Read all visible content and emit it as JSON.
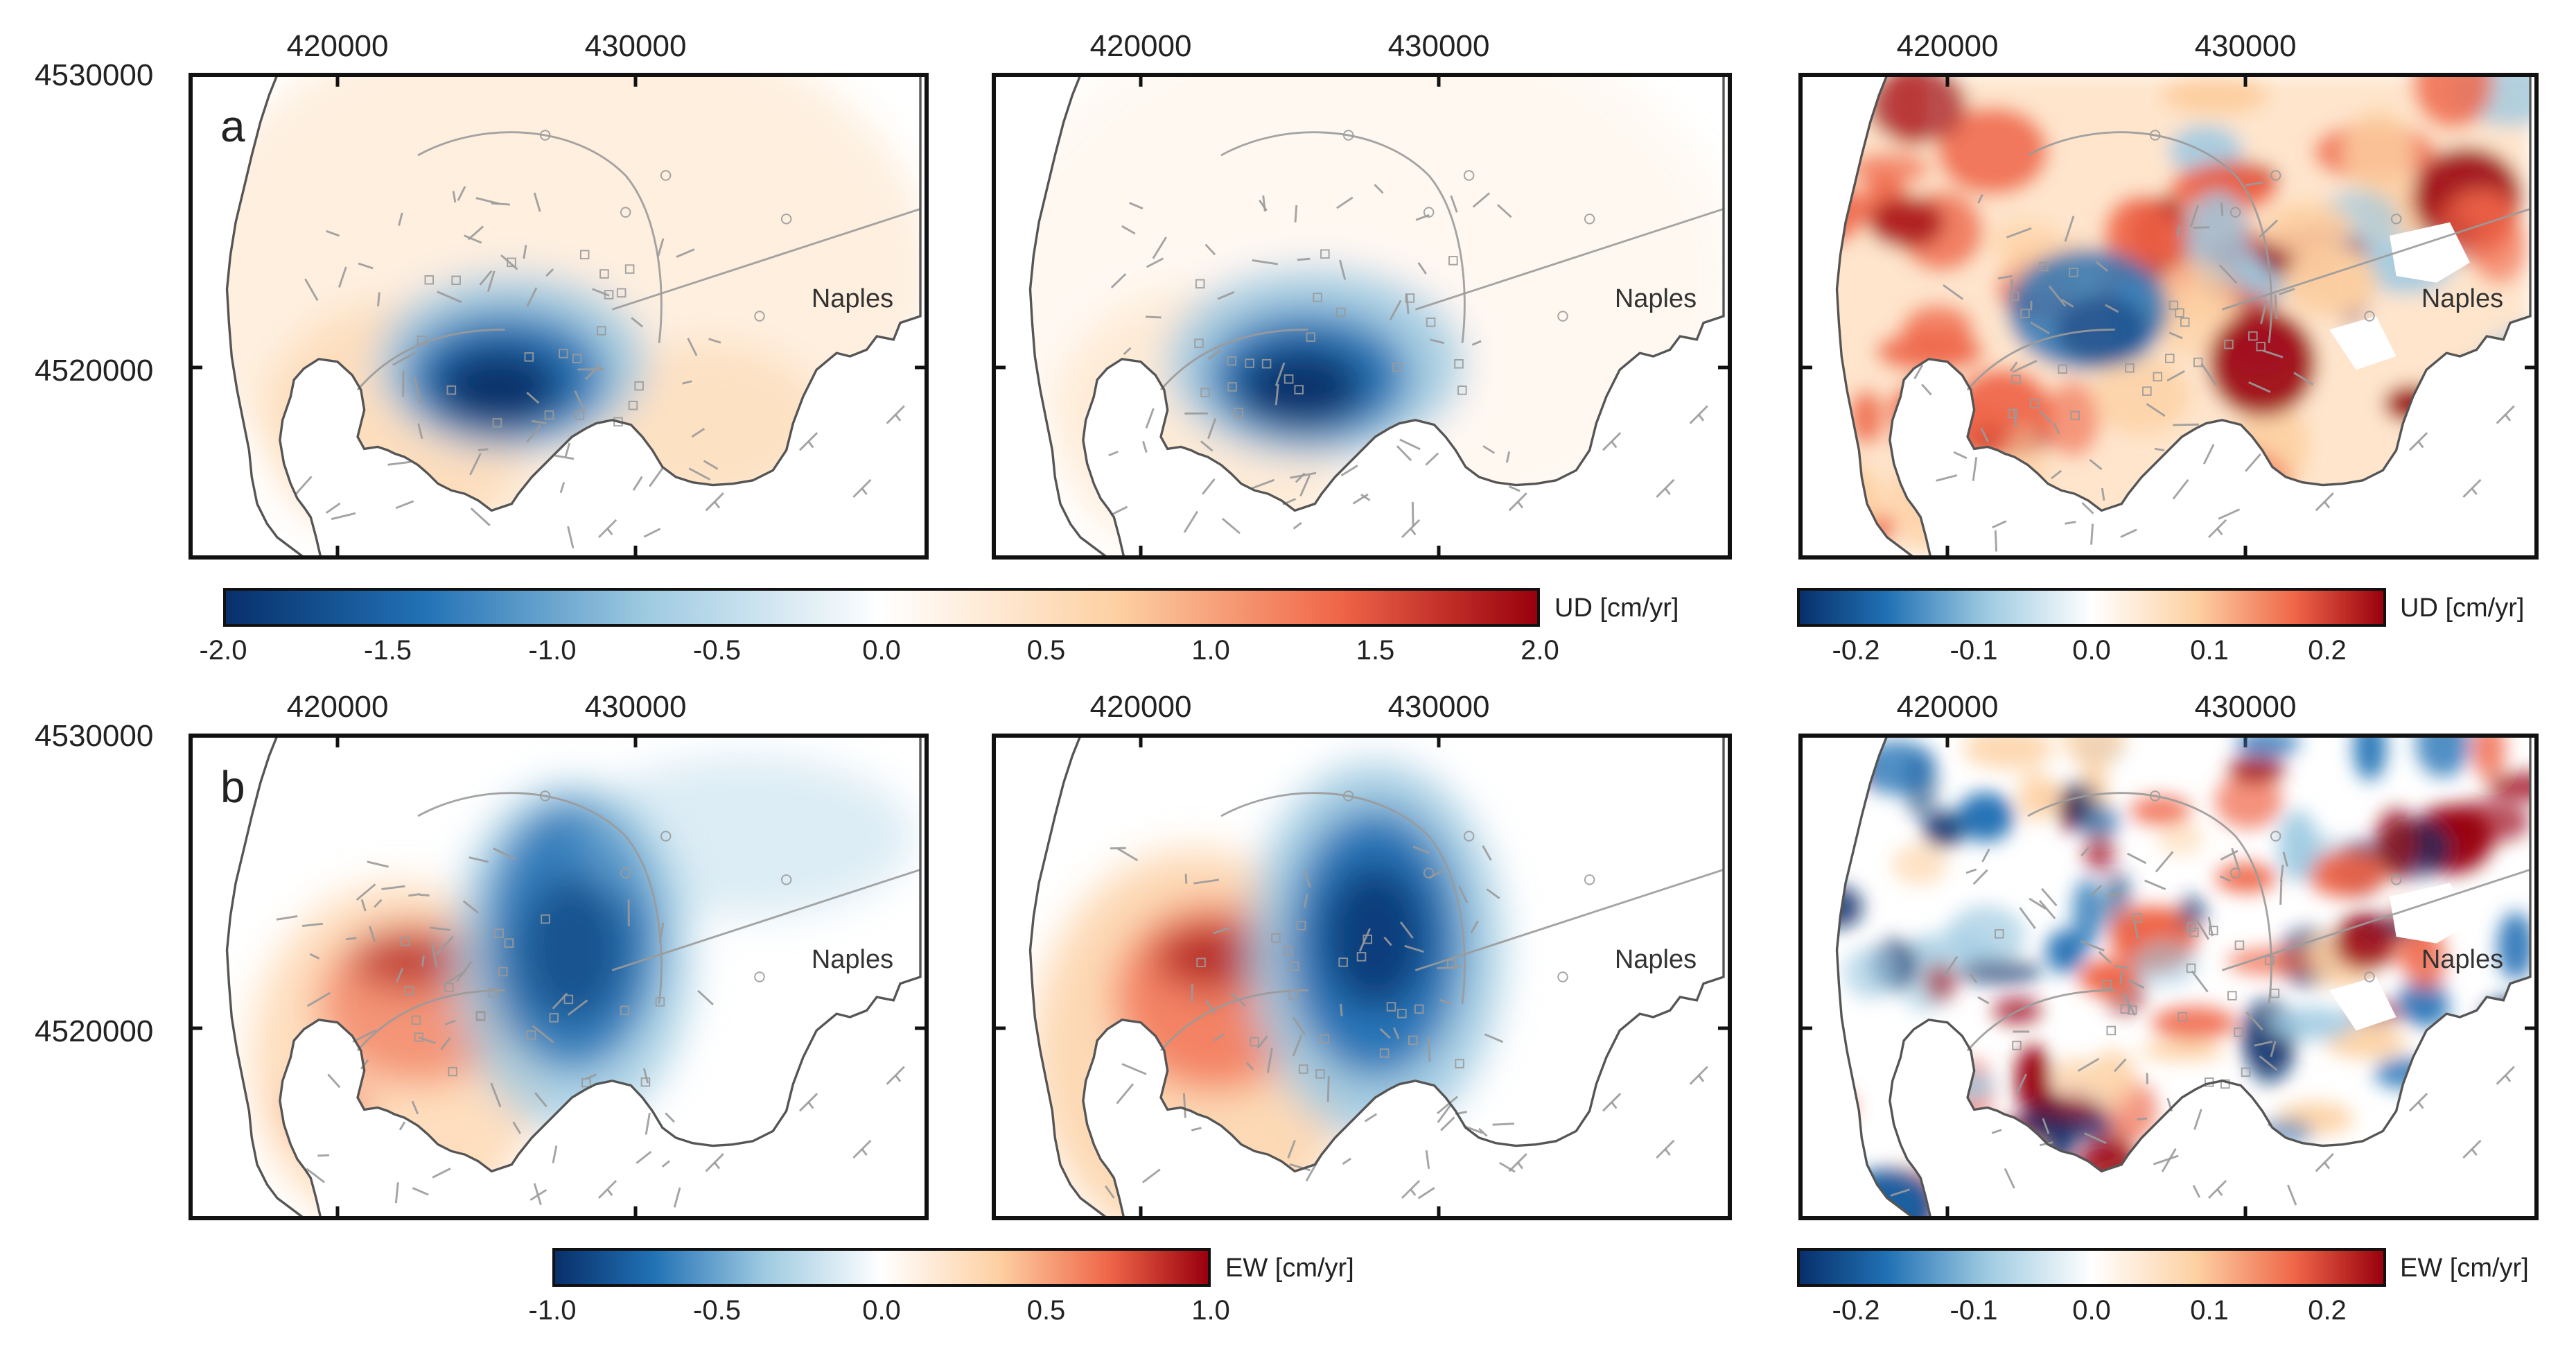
{
  "colors": {
    "div_neg_strong": "#08306b",
    "div_neg_mid": "#2171b5",
    "div_neg_light": "#9ecae1",
    "white": "#ffffff",
    "div_pos_light": "#fdd0a2",
    "div_pos_mid": "#ef6548",
    "div_pos_strong": "#99000d",
    "fault_line": "#9a9a9a",
    "coastline": "#555555"
  },
  "axes": {
    "x_ticks": [
      "420000",
      "430000"
    ],
    "y_ticks": [
      "4530000",
      "4520000"
    ]
  },
  "place_label": "Naples",
  "rows": [
    {
      "panel_letter": "a",
      "component": "UD",
      "maps": [
        {
          "role": "observed",
          "pattern": "ud_obs"
        },
        {
          "role": "model",
          "pattern": "ud_model"
        },
        {
          "role": "residual",
          "pattern": "ud_resid"
        }
      ],
      "colorbars": [
        {
          "label": "UD [cm/yr]",
          "ticks": [
            "-2.0",
            "-1.5",
            "-1.0",
            "-0.5",
            "0.0",
            "0.5",
            "1.0",
            "1.5",
            "2.0"
          ],
          "range": [
            -2.0,
            2.0
          ]
        },
        {
          "label": "UD [cm/yr]",
          "ticks": [
            "-0.2",
            "-0.1",
            "0.0",
            "0.1",
            "0.2"
          ],
          "range": [
            -0.25,
            0.25
          ]
        }
      ]
    },
    {
      "panel_letter": "b",
      "component": "EW",
      "maps": [
        {
          "role": "observed",
          "pattern": "ew_obs"
        },
        {
          "role": "model",
          "pattern": "ew_model"
        },
        {
          "role": "residual",
          "pattern": "ew_resid"
        }
      ],
      "colorbars": [
        {
          "label": "EW [cm/yr]",
          "ticks": [
            "-1.0",
            "-0.5",
            "0.0",
            "0.5",
            "1.0"
          ],
          "range": [
            -1.0,
            1.0
          ]
        },
        {
          "label": "EW [cm/yr]",
          "ticks": [
            "-0.2",
            "-0.1",
            "0.0",
            "0.1",
            "0.2"
          ],
          "range": [
            -0.25,
            0.25
          ]
        }
      ]
    }
  ]
}
